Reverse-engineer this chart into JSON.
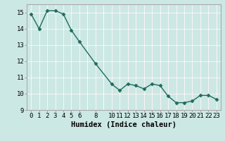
{
  "x": [
    0,
    1,
    2,
    3,
    4,
    5,
    6,
    8,
    10,
    11,
    12,
    13,
    14,
    15,
    16,
    17,
    18,
    19,
    20,
    21,
    22,
    23
  ],
  "y": [
    14.9,
    14.0,
    15.1,
    15.1,
    14.9,
    13.9,
    13.2,
    11.85,
    10.6,
    10.2,
    10.6,
    10.5,
    10.3,
    10.6,
    10.5,
    9.85,
    9.45,
    9.45,
    9.55,
    9.9,
    9.9,
    9.65
  ],
  "line_color": "#1f6b5e",
  "marker_color": "#1f6b5e",
  "bg_color": "#cce8e4",
  "grid_color_white": "#ffffff",
  "grid_color_pink": "#d8b8b8",
  "xlabel": "Humidex (Indice chaleur)",
  "xlim": [
    -0.5,
    23.5
  ],
  "ylim": [
    9,
    15.5
  ],
  "xticks": [
    0,
    1,
    2,
    3,
    4,
    5,
    6,
    8,
    10,
    11,
    12,
    13,
    14,
    15,
    16,
    17,
    18,
    19,
    20,
    21,
    22,
    23
  ],
  "yticks": [
    9,
    10,
    11,
    12,
    13,
    14,
    15
  ],
  "tick_fontsize": 6.5,
  "xlabel_fontsize": 7.5
}
